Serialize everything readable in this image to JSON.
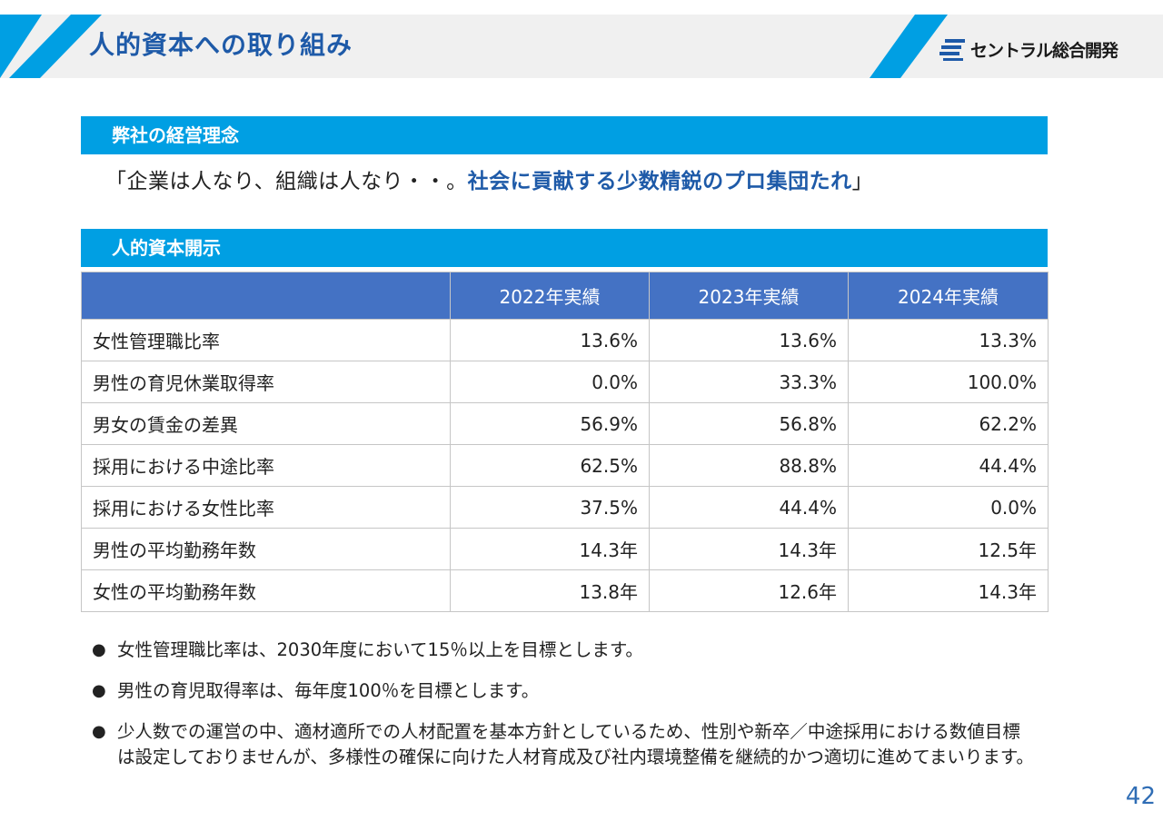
{
  "header": {
    "title": "人的資本への取り組み",
    "logo_text": "セントラル総合開発",
    "accent_color": "#009fe3",
    "title_color": "#1e5aa8"
  },
  "philosophy": {
    "heading": "弊社の経営理念",
    "open_quote": "「",
    "plain": "企業は人なり、組織は人なり・・。",
    "emphasis": "社会に貢献する少数精鋭のプロ集団たれ",
    "close_quote": "」"
  },
  "disclosure": {
    "heading": "人的資本開示",
    "columns": [
      "",
      "2022年実績",
      "2023年実績",
      "2024年実績"
    ],
    "rows": [
      {
        "label": "女性管理職比率",
        "values": [
          "13.6%",
          "13.6%",
          "13.3%"
        ]
      },
      {
        "label": "男性の育児休業取得率",
        "values": [
          "0.0%",
          "33.3%",
          "100.0%"
        ]
      },
      {
        "label": "男女の賃金の差異",
        "values": [
          "56.9%",
          "56.8%",
          "62.2%"
        ]
      },
      {
        "label": "採用における中途比率",
        "values": [
          "62.5%",
          "88.8%",
          "44.4%"
        ]
      },
      {
        "label": "採用における女性比率",
        "values": [
          "37.5%",
          "44.4%",
          "0.0%"
        ]
      },
      {
        "label": "男性の平均勤務年数",
        "values": [
          "14.3年",
          "14.3年",
          "12.5年"
        ]
      },
      {
        "label": "女性の平均勤務年数",
        "values": [
          "13.8年",
          "12.6年",
          "14.3年"
        ]
      }
    ]
  },
  "notes": {
    "bullet": "●",
    "items": [
      "女性管理職比率は、2030年度において15％以上を目標とします。",
      "男性の育児取得率は、毎年度100％を目標とします。",
      "少人数での運営の中、適材適所での人材配置を基本方針としているため、性別や新卒／中途採用における数値目標は設定しておりませんが、多様性の確保に向けた人材育成及び社内環境整備を継続的かつ適切に進めてまいります。"
    ]
  },
  "page_number": "42"
}
